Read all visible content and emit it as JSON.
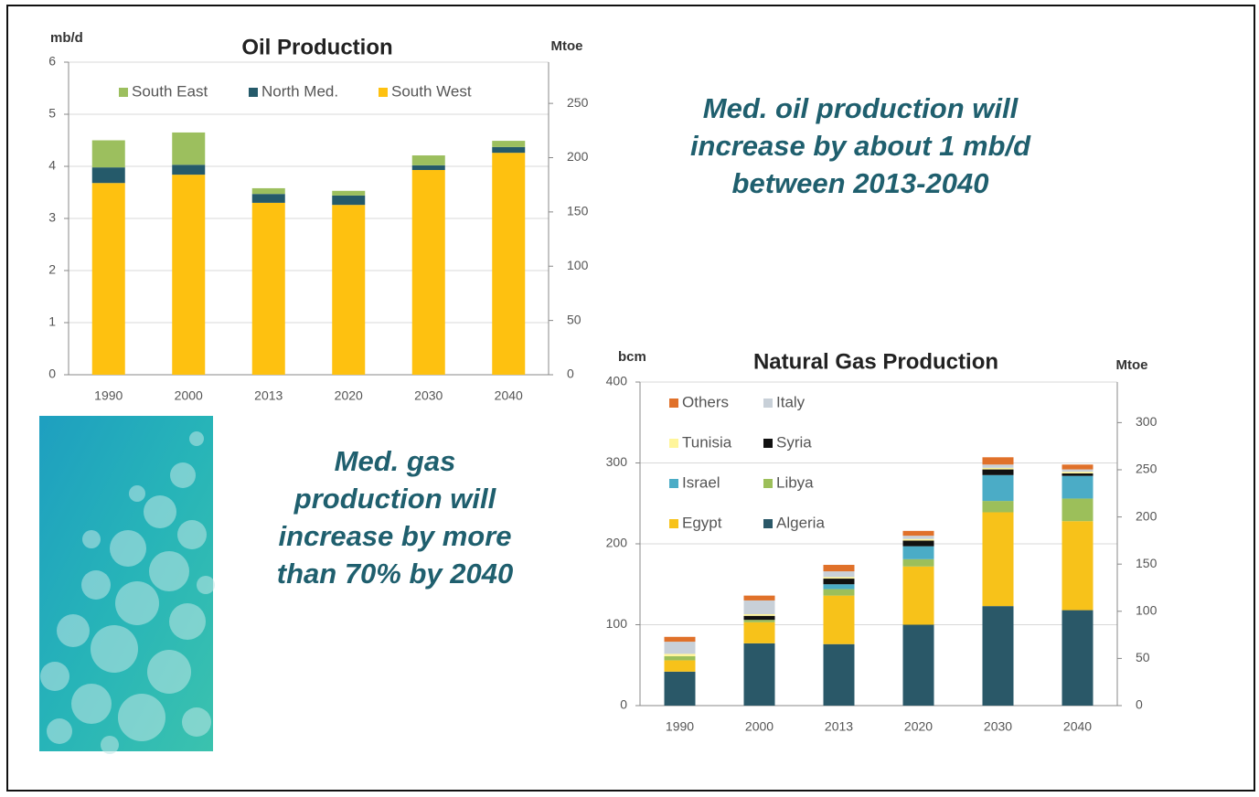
{
  "chart_data": [
    {
      "type": "stacked_bar",
      "title": "Oil Production",
      "ylabel": "mb/d",
      "y2label": "Mtoe",
      "categories": [
        "1990",
        "2000",
        "2013",
        "2020",
        "2030",
        "2040"
      ],
      "ylim": [
        0,
        6
      ],
      "yticks": [
        0,
        1,
        2,
        3,
        4,
        5,
        6
      ],
      "y2lim": [
        0,
        288
      ],
      "y2ticks": [
        0,
        50,
        100,
        150,
        200,
        250
      ],
      "grid": true,
      "series": [
        {
          "name": "South West",
          "color": "#fec110",
          "values": [
            3.68,
            3.84,
            3.3,
            3.26,
            3.93,
            4.26
          ]
        },
        {
          "name": "North Med.",
          "color": "#255a6a",
          "values": [
            0.3,
            0.19,
            0.17,
            0.18,
            0.09,
            0.11
          ]
        },
        {
          "name": "South East",
          "color": "#9cbf5e",
          "values": [
            0.52,
            0.62,
            0.11,
            0.09,
            0.19,
            0.12
          ]
        }
      ]
    },
    {
      "type": "stacked_bar",
      "title": "Natural Gas Production",
      "ylabel": "bcm",
      "y2label": "Mtoe",
      "categories": [
        "1990",
        "2000",
        "2013",
        "2020",
        "2030",
        "2040"
      ],
      "ylim": [
        0,
        400
      ],
      "yticks": [
        0,
        100,
        200,
        300,
        400
      ],
      "y2lim": [
        0,
        343
      ],
      "y2ticks": [
        0,
        50,
        100,
        150,
        200,
        250,
        300
      ],
      "grid": true,
      "series": [
        {
          "name": "Algeria",
          "color": "#2a5868",
          "values": [
            42,
            77,
            76,
            100,
            123,
            118
          ]
        },
        {
          "name": "Egypt",
          "color": "#f7c21a",
          "values": [
            14,
            26,
            60,
            72,
            116,
            110
          ]
        },
        {
          "name": "Libya",
          "color": "#9cbf5a",
          "values": [
            5,
            3,
            8,
            9,
            14,
            28
          ]
        },
        {
          "name": "Israel",
          "color": "#4bacc6",
          "values": [
            0,
            0,
            6,
            16,
            32,
            28
          ]
        },
        {
          "name": "Syria",
          "color": "#111111",
          "values": [
            0,
            5,
            7,
            7,
            7,
            3
          ]
        },
        {
          "name": "Tunisia",
          "color": "#fff59a",
          "values": [
            3,
            2,
            2,
            2,
            2,
            2
          ]
        },
        {
          "name": "Italy",
          "color": "#c8d0d8",
          "values": [
            15,
            17,
            7,
            4,
            4,
            3
          ]
        },
        {
          "name": "Others",
          "color": "#e0712a",
          "values": [
            6,
            6,
            8,
            6,
            9,
            6
          ]
        }
      ]
    }
  ],
  "callouts": [
    {
      "lines": [
        "Med. oil production will",
        "increase by about 1 mb/d",
        "between 2013-2040"
      ]
    },
    {
      "lines": [
        "Med. gas",
        "production will",
        "increase by more",
        "than 70% by 2040"
      ]
    }
  ]
}
